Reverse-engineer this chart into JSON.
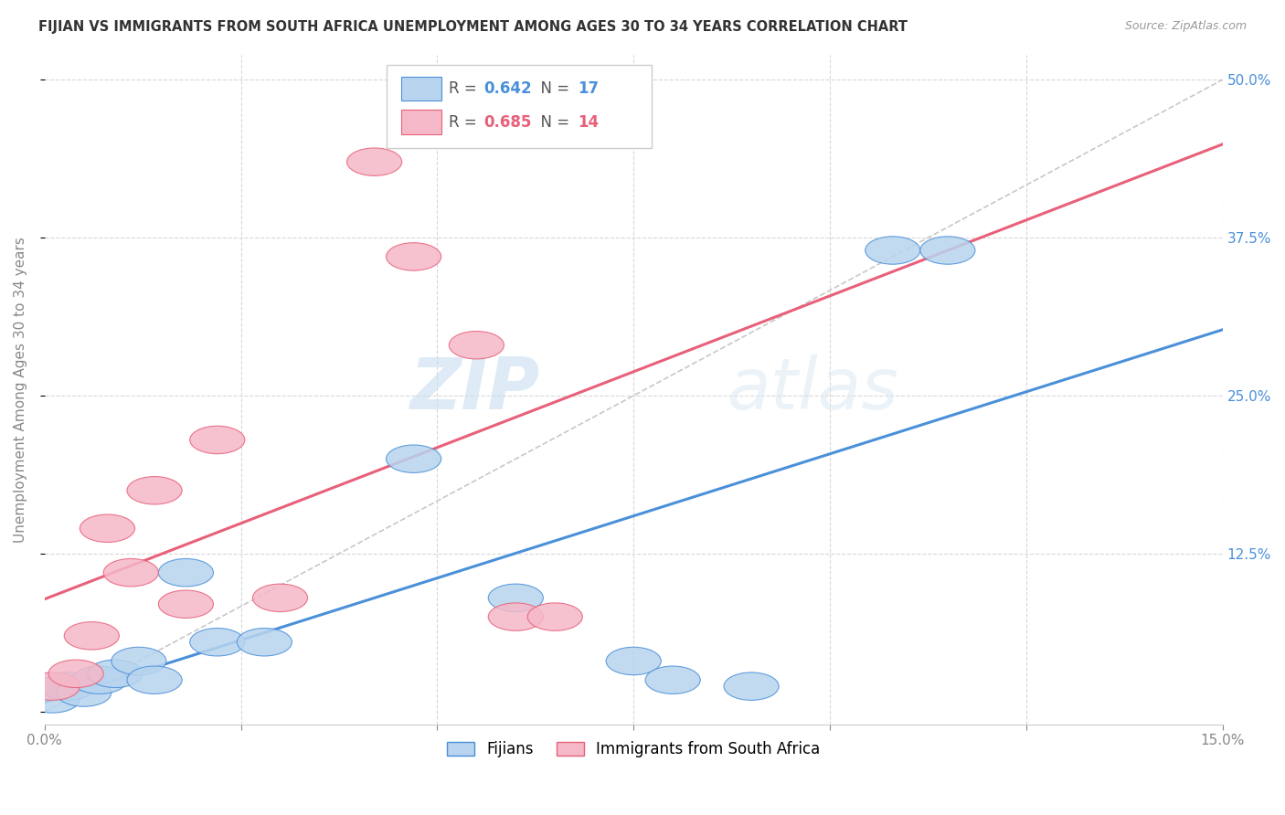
{
  "title": "FIJIAN VS IMMIGRANTS FROM SOUTH AFRICA UNEMPLOYMENT AMONG AGES 30 TO 34 YEARS CORRELATION CHART",
  "source": "Source: ZipAtlas.com",
  "ylabel": "Unemployment Among Ages 30 to 34 years",
  "xmin": 0.0,
  "xmax": 0.15,
  "ymin": -0.01,
  "ymax": 0.52,
  "xticks": [
    0.0,
    0.025,
    0.05,
    0.075,
    0.1,
    0.125,
    0.15
  ],
  "xticklabels": [
    "0.0%",
    "",
    "",
    "",
    "",
    "",
    "15.0%"
  ],
  "yticks": [
    0.0,
    0.125,
    0.25,
    0.375,
    0.5
  ],
  "yticklabels": [
    "",
    "12.5%",
    "25.0%",
    "37.5%",
    "50.0%"
  ],
  "fijians_x": [
    0.001,
    0.003,
    0.005,
    0.007,
    0.009,
    0.012,
    0.014,
    0.018,
    0.022,
    0.028,
    0.047,
    0.06,
    0.075,
    0.08,
    0.09,
    0.108,
    0.115
  ],
  "fijians_y": [
    0.01,
    0.02,
    0.015,
    0.025,
    0.03,
    0.04,
    0.025,
    0.11,
    0.055,
    0.055,
    0.2,
    0.09,
    0.04,
    0.025,
    0.02,
    0.365,
    0.365
  ],
  "sa_x": [
    0.001,
    0.004,
    0.006,
    0.008,
    0.011,
    0.014,
    0.018,
    0.022,
    0.03,
    0.042,
    0.047,
    0.055,
    0.06,
    0.065
  ],
  "sa_y": [
    0.02,
    0.03,
    0.06,
    0.145,
    0.11,
    0.175,
    0.085,
    0.215,
    0.09,
    0.435,
    0.36,
    0.29,
    0.075,
    0.075
  ],
  "fijians_R": 0.642,
  "fijians_N": 17,
  "sa_R": 0.685,
  "sa_N": 14,
  "fijians_color": "#b8d4ee",
  "sa_color": "#f5b8c8",
  "fijians_line_color": "#4a90d9",
  "sa_line_color": "#e8607a",
  "diagonal_color": "#c8c8c8",
  "watermark_zip": "ZIP",
  "watermark_atlas": "atlas",
  "legend_fijians_label": "Fijians",
  "legend_sa_label": "Immigrants from South Africa"
}
